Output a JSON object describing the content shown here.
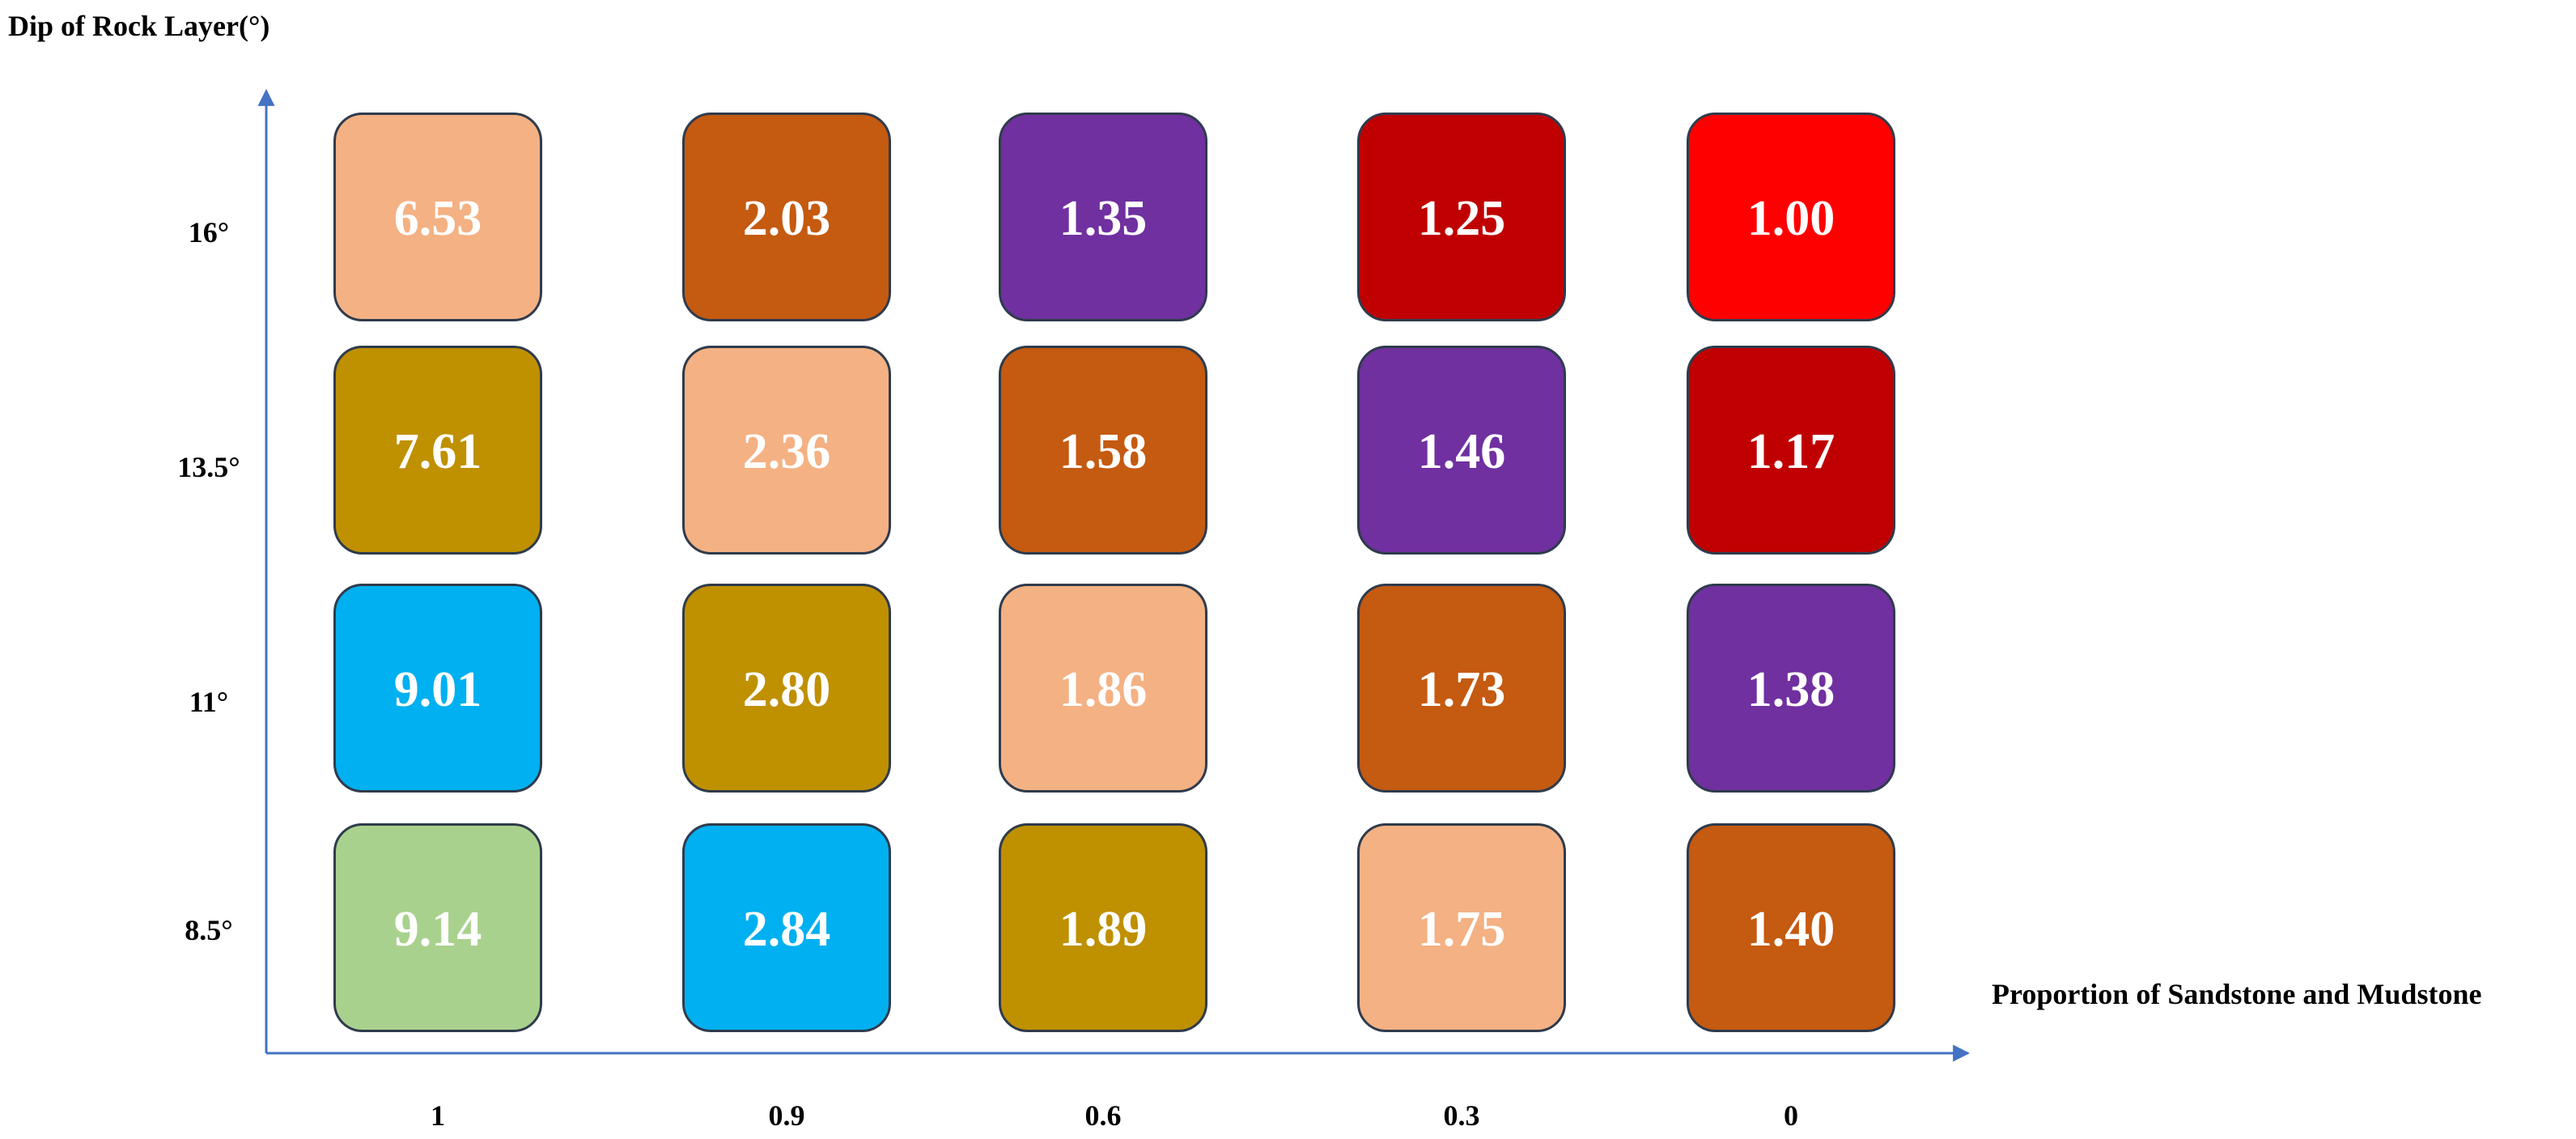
{
  "chart_data": {
    "type": "heatmap",
    "ylabel": "Dip of Rock Layer(°)",
    "xlabel": "Proportion of Sandstone and Mudstone",
    "x_categories": [
      "1",
      "0.9",
      "0.6",
      "0.3",
      "0"
    ],
    "y_categories": [
      "16°",
      "13.5°",
      "11°",
      "8.5°"
    ],
    "values": [
      [
        "6.53",
        "2.03",
        "1.35",
        "1.25",
        "1.00"
      ],
      [
        "7.61",
        "2.36",
        "1.58",
        "1.46",
        "1.17"
      ],
      [
        "9.01",
        "2.80",
        "1.86",
        "1.73",
        "1.38"
      ],
      [
        "9.14",
        "2.84",
        "1.89",
        "1.75",
        "1.40"
      ]
    ],
    "cell_colors": [
      [
        "#f4b183",
        "#c55a11",
        "#7030a0",
        "#c00000",
        "#ff0000"
      ],
      [
        "#bf9000",
        "#f4b183",
        "#c55a11",
        "#7030a0",
        "#c00000"
      ],
      [
        "#00b0f0",
        "#bf9000",
        "#f4b183",
        "#c55a11",
        "#7030a0"
      ],
      [
        "#a9d18e",
        "#00b0f0",
        "#bf9000",
        "#f4b183",
        "#c55a11"
      ]
    ],
    "axis_color": "#4472c4"
  }
}
